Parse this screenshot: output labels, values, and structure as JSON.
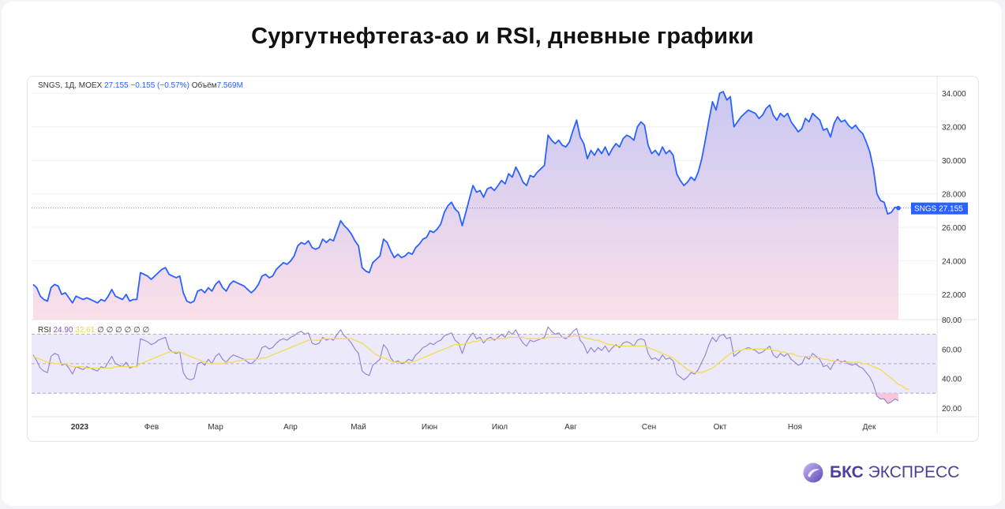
{
  "title": "Сургутнефтегаз-ао и RSI, дневные графики",
  "legend": {
    "symbol": "SNGS, 1Д, MOEX",
    "price": "27.155",
    "change": "−0.155 (−0.57%)",
    "volume_label": "Объём",
    "volume_value": "7.569M"
  },
  "rsi_legend": {
    "label": "RSI",
    "rsi_value": "24.90",
    "ma_value": "32.61",
    "extra": "∅ ∅ ∅ ∅ ∅ ∅"
  },
  "price_badge": {
    "symbol": "SNGS",
    "value": "27.155"
  },
  "brand": {
    "bold": "БКС",
    "rest": " ЭКСПРЕСС"
  },
  "colors": {
    "line": "#2962ff",
    "area_top": "#c9c8f2",
    "area_bottom": "#fbdfe9",
    "rsi_line": "#8c7fd6",
    "rsi_ma": "#f2dc52",
    "rsi_band": "#ece9fa",
    "badge": "#2962ff"
  },
  "chart_data": [
    {
      "type": "area",
      "name": "price",
      "ylim": [
        20.5,
        35.0
      ],
      "yticks": [
        "34.000",
        "32.000",
        "30.000",
        "28.000",
        "26.000",
        "24.000",
        "22.000"
      ],
      "ytick_values": [
        34,
        32,
        30,
        28,
        26,
        24,
        22
      ],
      "x_labels": [
        "2023",
        "Фев",
        "Мар",
        "Апр",
        "Май",
        "Июн",
        "Июл",
        "Авг",
        "Сен",
        "Окт",
        "Ноя",
        "Дек"
      ],
      "series": [
        {
          "values": [
            22.6,
            22.4,
            21.9,
            21.7,
            21.6,
            22.4,
            22.6,
            22.5,
            22.0,
            22.1,
            21.8,
            21.5,
            21.9,
            21.8,
            21.7,
            21.8,
            21.7,
            21.6,
            21.5,
            21.7,
            21.6,
            21.9,
            22.3,
            21.9,
            21.8,
            21.7,
            22.0,
            21.6,
            21.7,
            21.7,
            23.3,
            23.2,
            23.1,
            22.9,
            23.1,
            23.3,
            23.5,
            23.6,
            23.2,
            23.1,
            23.0,
            23.1,
            22.1,
            21.6,
            21.5,
            21.6,
            22.2,
            22.3,
            22.1,
            22.4,
            22.2,
            22.6,
            22.8,
            22.4,
            22.2,
            22.6,
            22.8,
            22.7,
            22.6,
            22.5,
            22.3,
            22.1,
            22.3,
            22.6,
            23.1,
            23.2,
            23.0,
            23.1,
            23.5,
            23.7,
            23.9,
            23.8,
            24.0,
            24.3,
            24.9,
            25.1,
            25.0,
            25.2,
            24.8,
            24.7,
            24.8,
            25.3,
            25.1,
            25.3,
            25.2,
            25.8,
            26.4,
            26.1,
            25.9,
            25.6,
            25.2,
            24.9,
            23.6,
            23.4,
            23.3,
            23.9,
            24.1,
            24.3,
            25.3,
            25.1,
            24.6,
            24.2,
            24.4,
            24.2,
            24.3,
            24.5,
            24.4,
            24.8,
            25.0,
            25.3,
            25.4,
            25.8,
            25.7,
            25.9,
            26.2,
            26.9,
            27.3,
            27.5,
            27.1,
            26.9,
            26.1,
            26.9,
            27.7,
            28.5,
            28.1,
            28.2,
            27.8,
            28.3,
            28.4,
            28.2,
            28.5,
            28.8,
            28.6,
            29.2,
            29.0,
            29.6,
            29.2,
            28.7,
            28.5,
            29.1,
            29.0,
            29.3,
            29.5,
            29.7,
            31.5,
            31.2,
            31.0,
            31.2,
            30.9,
            30.8,
            31.1,
            31.8,
            32.4,
            31.4,
            31.0,
            30.1,
            30.6,
            30.3,
            30.7,
            30.4,
            30.8,
            30.3,
            30.7,
            31.0,
            30.8,
            31.3,
            31.5,
            31.4,
            31.2,
            32.0,
            32.3,
            32.1,
            30.9,
            30.4,
            30.6,
            30.3,
            30.8,
            30.4,
            30.6,
            30.3,
            29.2,
            28.8,
            28.5,
            28.7,
            29.0,
            28.8,
            29.3,
            30.1,
            31.2,
            32.4,
            33.5,
            33.0,
            34.0,
            34.1,
            33.6,
            33.8,
            32.0,
            32.3,
            32.6,
            32.8,
            33.0,
            32.9,
            32.8,
            32.5,
            32.7,
            33.1,
            33.3,
            32.7,
            32.4,
            32.8,
            32.6,
            32.8,
            32.3,
            32.0,
            31.7,
            31.9,
            32.5,
            32.3,
            32.8,
            32.6,
            32.4,
            31.8,
            31.9,
            31.4,
            32.2,
            32.6,
            32.3,
            32.4,
            32.1,
            31.9,
            32.1,
            31.8,
            31.6,
            31.1,
            30.5,
            29.5,
            28.0,
            27.6,
            27.5,
            26.8,
            26.9,
            27.2,
            27.155
          ]
        }
      ]
    },
    {
      "type": "line",
      "name": "RSI",
      "ylim": [
        14.0,
        80.0
      ],
      "yticks": [
        "80.00",
        "60.00",
        "40.00",
        "20.00"
      ],
      "ytick_values": [
        80,
        60,
        40,
        20
      ],
      "bands": [
        30,
        50,
        70
      ],
      "series": [
        {
          "name": "RSI",
          "values": [
            56,
            52,
            47,
            45,
            44,
            55,
            57,
            56,
            49,
            50,
            47,
            43,
            48,
            47,
            46,
            48,
            47,
            46,
            45,
            48,
            47,
            51,
            55,
            50,
            49,
            48,
            51,
            47,
            48,
            48,
            67,
            66,
            65,
            63,
            64,
            66,
            67,
            68,
            60,
            58,
            57,
            58,
            44,
            40,
            39,
            40,
            50,
            51,
            49,
            53,
            50,
            55,
            57,
            53,
            51,
            54,
            56,
            55,
            54,
            53,
            51,
            50,
            52,
            55,
            61,
            62,
            60,
            61,
            64,
            66,
            67,
            66,
            68,
            69,
            71,
            72,
            70,
            71,
            64,
            63,
            64,
            68,
            66,
            67,
            66,
            70,
            73,
            69,
            67,
            64,
            60,
            57,
            45,
            43,
            42,
            49,
            51,
            53,
            63,
            60,
            54,
            51,
            52,
            50,
            51,
            53,
            52,
            56,
            58,
            61,
            62,
            64,
            63,
            65,
            66,
            69,
            70,
            71,
            66,
            64,
            57,
            64,
            68,
            71,
            67,
            68,
            64,
            67,
            68,
            66,
            68,
            70,
            68,
            72,
            70,
            73,
            68,
            64,
            62,
            66,
            65,
            66,
            67,
            68,
            75,
            72,
            70,
            71,
            68,
            67,
            69,
            72,
            74,
            66,
            63,
            57,
            61,
            58,
            61,
            59,
            62,
            58,
            61,
            63,
            61,
            64,
            65,
            64,
            62,
            66,
            67,
            66,
            57,
            53,
            54,
            52,
            56,
            53,
            54,
            52,
            43,
            41,
            39,
            41,
            44,
            43,
            46,
            51,
            56,
            63,
            68,
            65,
            69,
            70,
            67,
            68,
            55,
            57,
            59,
            60,
            61,
            60,
            59,
            57,
            58,
            60,
            62,
            56,
            54,
            57,
            55,
            57,
            53,
            51,
            49,
            50,
            55,
            53,
            57,
            55,
            53,
            48,
            49,
            46,
            51,
            53,
            51,
            52,
            50,
            49,
            50,
            48,
            47,
            44,
            41,
            36,
            28,
            26,
            26,
            23,
            24,
            26,
            24.9
          ]
        },
        {
          "name": "MA",
          "values": [
            55,
            54,
            53,
            52,
            51,
            51,
            50,
            50,
            50,
            50,
            49,
            48,
            48,
            48,
            48,
            47,
            47,
            47,
            47,
            47,
            47,
            47,
            47,
            48,
            48,
            48,
            48,
            48,
            48,
            48,
            50,
            51,
            52,
            53,
            54,
            55,
            56,
            57,
            58,
            58,
            58,
            58,
            57,
            56,
            55,
            54,
            53,
            52,
            51,
            50,
            50,
            50,
            50,
            50,
            51,
            51,
            51,
            52,
            52,
            53,
            53,
            53,
            53,
            53,
            54,
            54,
            55,
            56,
            57,
            58,
            59,
            60,
            61,
            62,
            63,
            64,
            65,
            66,
            66,
            66,
            66,
            67,
            67,
            67,
            67,
            67,
            67,
            67,
            67,
            67,
            66,
            65,
            64,
            62,
            60,
            58,
            56,
            55,
            54,
            53,
            52,
            51,
            51,
            51,
            51,
            51,
            51,
            52,
            53,
            54,
            55,
            56,
            57,
            58,
            59,
            60,
            61,
            62,
            63,
            63,
            63,
            64,
            64,
            65,
            65,
            66,
            66,
            66,
            66,
            67,
            67,
            67,
            67,
            68,
            68,
            68,
            68,
            68,
            67,
            67,
            67,
            67,
            67,
            67,
            68,
            68,
            68,
            68,
            68,
            68,
            68,
            69,
            69,
            69,
            68,
            67,
            67,
            66,
            66,
            65,
            64,
            63,
            63,
            62,
            62,
            62,
            62,
            62,
            62,
            62,
            62,
            62,
            61,
            60,
            59,
            58,
            57,
            56,
            55,
            54,
            52,
            50,
            48,
            46,
            45,
            44,
            44,
            44,
            45,
            46,
            47,
            49,
            51,
            53,
            55,
            57,
            58,
            59,
            59,
            60,
            60,
            60,
            60,
            60,
            60,
            60,
            60,
            59,
            59,
            58,
            58,
            57,
            57,
            56,
            55,
            55,
            55,
            55,
            55,
            54,
            54,
            53,
            53,
            52,
            52,
            52,
            52,
            51,
            51,
            51,
            51,
            51,
            50,
            50,
            49,
            48,
            47,
            46,
            44,
            42,
            40,
            38,
            36,
            35,
            33,
            32.61
          ]
        }
      ]
    }
  ]
}
